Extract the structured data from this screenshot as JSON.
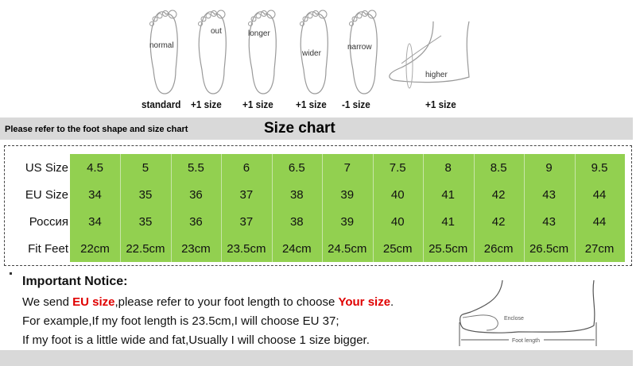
{
  "foot_shapes": [
    {
      "label": "normal",
      "size": "standard"
    },
    {
      "label": "out",
      "size": "+1 size"
    },
    {
      "label": "longer",
      "size": "+1 size"
    },
    {
      "label": "wider",
      "size": "+1 size"
    },
    {
      "label": "narrow",
      "size": "-1 size"
    },
    {
      "label": "higher",
      "size": "+1 size"
    }
  ],
  "header": {
    "note": "Please refer to the foot shape and size chart",
    "title": "Size chart"
  },
  "size_table": {
    "accent_color": "#92d050",
    "rows": [
      {
        "label": "US Size",
        "values": [
          "4.5",
          "5",
          "5.5",
          "6",
          "6.5",
          "7",
          "7.5",
          "8",
          "8.5",
          "9",
          "9.5"
        ]
      },
      {
        "label": "EU Size",
        "values": [
          "34",
          "35",
          "36",
          "37",
          "38",
          "39",
          "40",
          "41",
          "42",
          "43",
          "44"
        ]
      },
      {
        "label": "Россия",
        "values": [
          "34",
          "35",
          "36",
          "37",
          "38",
          "39",
          "40",
          "41",
          "42",
          "43",
          "44"
        ]
      },
      {
        "label": "Fit Feet",
        "values": [
          "22cm",
          "22.5cm",
          "23cm",
          "23.5cm",
          "24cm",
          "24.5cm",
          "25cm",
          "25.5cm",
          "26cm",
          "26.5cm",
          "27cm"
        ]
      }
    ]
  },
  "notice": {
    "title": "Important Notice:",
    "line1_a": "We send ",
    "line1_b": "EU size",
    "line1_c": ",please refer to your foot length to choose ",
    "line1_d": "Your size",
    "line1_end": ".",
    "line2": "For example,If my foot length is 23.5cm,I will choose EU 37;",
    "line3": "If my foot is a little wide and fat,Usually I will choose 1 size bigger."
  },
  "diagram": {
    "enclose": "Enclose",
    "foot_length": "Foot length"
  }
}
